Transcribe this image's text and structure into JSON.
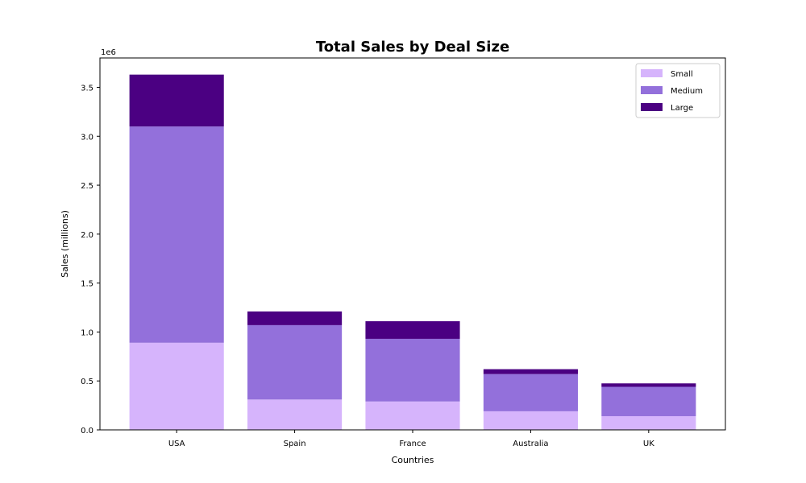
{
  "chart_data": {
    "type": "bar",
    "stacked": true,
    "title": "Total Sales by Deal Size",
    "xlabel": "Countries",
    "ylabel": "Sales (millions)",
    "offset_label": "1e6",
    "categories": [
      "USA",
      "Spain",
      "France",
      "Australia",
      "UK"
    ],
    "series": [
      {
        "name": "Small",
        "color": "#d6b4fc",
        "values": [
          890000,
          310000,
          290000,
          190000,
          140000
        ]
      },
      {
        "name": "Medium",
        "color": "#9370db",
        "values": [
          2210000,
          760000,
          640000,
          380000,
          300000
        ]
      },
      {
        "name": "Large",
        "color": "#4b0082",
        "values": [
          530000,
          140000,
          180000,
          50000,
          35000
        ]
      }
    ],
    "ylim": [
      0,
      3800000
    ],
    "yticks": [
      0,
      500000,
      1000000,
      1500000,
      2000000,
      2500000,
      3000000,
      3500000
    ],
    "ytick_labels": [
      "0.0",
      "0.5",
      "1.0",
      "1.5",
      "2.0",
      "2.5",
      "3.0",
      "3.5"
    ],
    "grid": false,
    "legend_position": "top-right"
  }
}
